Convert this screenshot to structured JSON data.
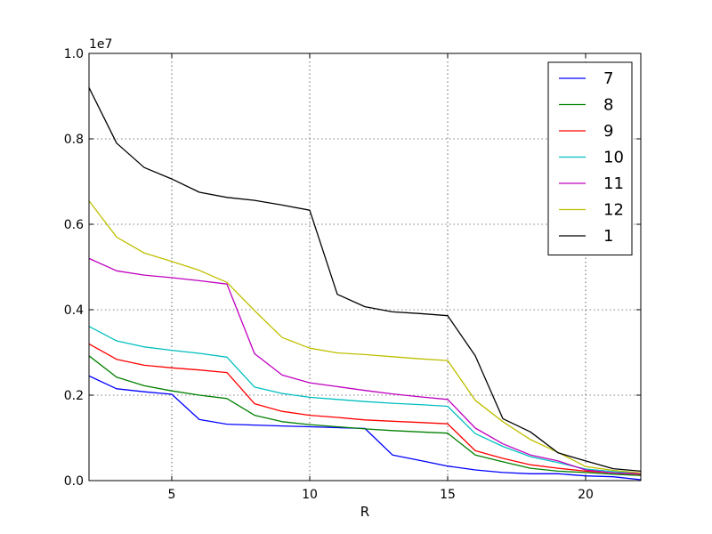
{
  "chart_data": {
    "type": "line",
    "title": "",
    "xlabel": "R",
    "ylabel": "",
    "offset_label": "1e7",
    "xlim": [
      2,
      22
    ],
    "ylim": [
      0,
      10000000
    ],
    "xticks": [
      5,
      10,
      15,
      20
    ],
    "xtick_labels": [
      "5",
      "10",
      "15",
      "20"
    ],
    "yticks": [
      0,
      2000000,
      4000000,
      6000000,
      8000000,
      10000000
    ],
    "ytick_labels": [
      "0.0",
      "0.2",
      "0.4",
      "0.6",
      "0.8",
      "1.0"
    ],
    "grid": true,
    "legend_position": "top-right",
    "x": [
      2,
      3,
      4,
      5,
      6,
      7,
      8,
      9,
      10,
      11,
      12,
      13,
      14,
      15,
      16,
      17,
      18,
      19,
      20,
      21,
      22
    ],
    "series": [
      {
        "name": "7",
        "color": "#0000ff",
        "values": [
          2450000,
          2150000,
          2080000,
          2020000,
          1430000,
          1320000,
          1300000,
          1280000,
          1260000,
          1240000,
          1220000,
          600000,
          470000,
          340000,
          250000,
          190000,
          160000,
          160000,
          110000,
          90000,
          20000
        ]
      },
      {
        "name": "8",
        "color": "#008000",
        "values": [
          2920000,
          2420000,
          2220000,
          2100000,
          2000000,
          1920000,
          1530000,
          1380000,
          1310000,
          1260000,
          1210000,
          1170000,
          1140000,
          1110000,
          600000,
          440000,
          290000,
          220000,
          190000,
          150000,
          120000
        ]
      },
      {
        "name": "9",
        "color": "#ff0000",
        "values": [
          3200000,
          2840000,
          2700000,
          2640000,
          2590000,
          2530000,
          1800000,
          1620000,
          1530000,
          1480000,
          1420000,
          1390000,
          1360000,
          1330000,
          700000,
          520000,
          370000,
          290000,
          220000,
          180000,
          150000
        ]
      },
      {
        "name": "10",
        "color": "#00bfbf",
        "values": [
          3610000,
          3270000,
          3130000,
          3050000,
          2980000,
          2890000,
          2190000,
          2040000,
          1950000,
          1900000,
          1850000,
          1810000,
          1780000,
          1740000,
          1100000,
          800000,
          560000,
          420000,
          270000,
          210000,
          160000
        ]
      },
      {
        "name": "11",
        "color": "#bf00bf",
        "values": [
          5200000,
          4910000,
          4810000,
          4750000,
          4680000,
          4600000,
          2970000,
          2470000,
          2290000,
          2200000,
          2110000,
          2030000,
          1960000,
          1900000,
          1230000,
          860000,
          600000,
          460000,
          250000,
          180000,
          160000
        ]
      },
      {
        "name": "12",
        "color": "#bfbf00",
        "values": [
          6550000,
          5700000,
          5330000,
          5130000,
          4920000,
          4640000,
          3980000,
          3350000,
          3100000,
          2990000,
          2950000,
          2900000,
          2850000,
          2810000,
          1880000,
          1380000,
          960000,
          660000,
          330000,
          240000,
          180000
        ]
      },
      {
        "name": "1",
        "color": "#000000",
        "values": [
          9200000,
          7900000,
          7330000,
          7060000,
          6750000,
          6630000,
          6560000,
          6450000,
          6330000,
          4360000,
          4070000,
          3950000,
          3910000,
          3860000,
          2920000,
          1450000,
          1140000,
          650000,
          460000,
          280000,
          220000
        ]
      }
    ]
  }
}
